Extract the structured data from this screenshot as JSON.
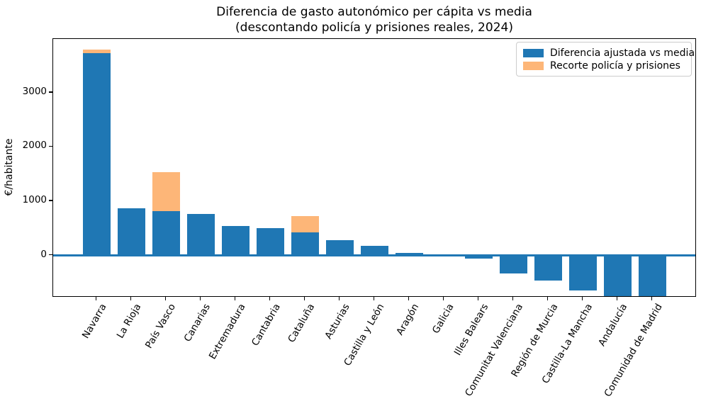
{
  "title": {
    "line1": "Diferencia de gasto autonómico per cápita vs media",
    "line2": "(descontando policía y prisiones reales, 2024)"
  },
  "ylabel": "€/habitante",
  "legend": [
    {
      "label": "Diferencia ajustada vs media",
      "color": "#1f77b4"
    },
    {
      "label": "Recorte policía y prisiones",
      "color": "#fdb678"
    }
  ],
  "chart_data": {
    "type": "bar",
    "stacked": true,
    "title": "Diferencia de gasto autonómico per cápita vs media (descontando policía y prisiones reales, 2024)",
    "xlabel": "",
    "ylabel": "€/habitante",
    "categories": [
      "Navarra",
      "La Rioja",
      "País Vasco",
      "Canarias",
      "Extremadura",
      "Cantabria",
      "Cataluña",
      "Asturias",
      "Castilla y León",
      "Aragón",
      "Galicia",
      "Illes Balears",
      "Comunitat Valenciana",
      "Región de Murcia",
      "Castilla-La Mancha",
      "Andalucía",
      "Comunidad de Madrid"
    ],
    "series": [
      {
        "name": "Diferencia ajustada vs media",
        "color": "#1f77b4",
        "values": [
          3725,
          865,
          820,
          770,
          550,
          505,
          430,
          285,
          175,
          50,
          -15,
          -60,
          -325,
          -460,
          -650,
          -775,
          -775
        ]
      },
      {
        "name": "Recorte policía y prisiones",
        "color": "#fdb678",
        "values": [
          65,
          0,
          715,
          0,
          0,
          0,
          290,
          0,
          0,
          0,
          0,
          0,
          0,
          0,
          0,
          0,
          0
        ]
      }
    ],
    "yticks": [
      0,
      1000,
      2000,
      3000
    ],
    "ylim": [
      -775,
      3990
    ],
    "baseline": 0,
    "grid": false,
    "legend_position": "upper right",
    "xtick_rotation": 60,
    "clipped_categories": [
      "Andalucía",
      "Comunidad de Madrid"
    ],
    "note_zero_line_color": "#1f77b4"
  }
}
